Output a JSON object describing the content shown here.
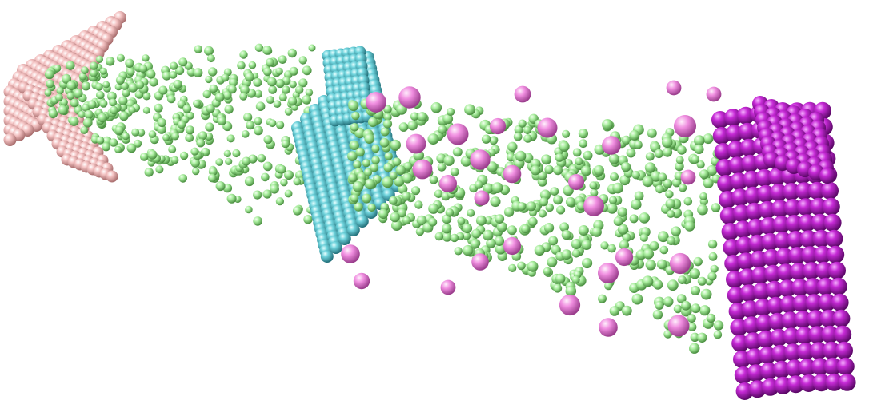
{
  "scene": {
    "description_visible_text": "",
    "groups": [
      {
        "name": "left-lattice-block",
        "color": "#f0b7b7",
        "shade": "#b07878"
      },
      {
        "name": "middle-lattice-sheet",
        "color": "#6fd3dc",
        "shade": "#2a8a96"
      },
      {
        "name": "right-lattice-block",
        "color": "#c62ad6",
        "shade": "#6a0a78"
      },
      {
        "name": "small-particles",
        "color": "#a9ee9e",
        "shade": "#4f9a46"
      },
      {
        "name": "large-particles",
        "color": "#f08ee0",
        "shade": "#a8459a"
      }
    ]
  }
}
